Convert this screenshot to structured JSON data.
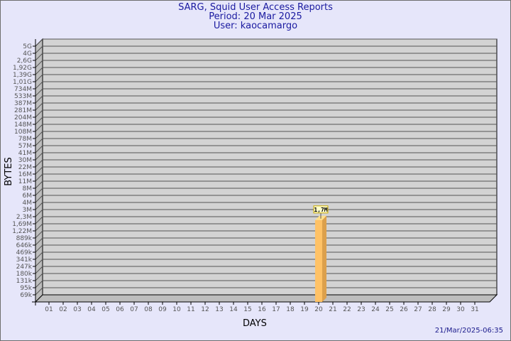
{
  "chart_data": {
    "type": "bar",
    "title": "SARG, Squid User Access Reports",
    "subtitle": [
      "Period: 20 Mar 2025",
      "User: kaocamargo"
    ],
    "xlabel": "DAYS",
    "ylabel": "BYTES",
    "yscale": "log",
    "grid": true,
    "categories": [
      "01",
      "02",
      "03",
      "04",
      "05",
      "06",
      "07",
      "08",
      "09",
      "10",
      "11",
      "12",
      "13",
      "14",
      "15",
      "16",
      "17",
      "18",
      "19",
      "20",
      "21",
      "22",
      "23",
      "24",
      "25",
      "26",
      "27",
      "28",
      "29",
      "30",
      "31"
    ],
    "y_tick_labels": [
      "5G",
      "4G",
      "2,6G",
      "1,92G",
      "1,39G",
      "1,01G",
      "734M",
      "533M",
      "387M",
      "281M",
      "204M",
      "148M",
      "108M",
      "78M",
      "57M",
      "41M",
      "30M",
      "22M",
      "16M",
      "11M",
      "8M",
      "6M",
      "4M",
      "3M",
      "2,3M",
      "1,69M",
      "1,22M",
      "889k",
      "646k",
      "469k",
      "341k",
      "247k",
      "180k",
      "131k",
      "95k",
      "69k"
    ],
    "series": [
      {
        "values": [
          0,
          0,
          0,
          0,
          0,
          0,
          0,
          0,
          0,
          0,
          0,
          0,
          0,
          0,
          0,
          0,
          0,
          0,
          0,
          1700000,
          0,
          0,
          0,
          0,
          0,
          0,
          0,
          0,
          0,
          0,
          0
        ],
        "data_labels": {
          "20": "1,7M"
        }
      }
    ],
    "colors": {
      "bar_front": "#ffc266",
      "bar_side": "#dca04c",
      "bar_top": "#ffe08a",
      "wall": "#d3d3d3",
      "grid": "#555555",
      "background": "#e6e6fa",
      "title": "#1a1aa0"
    }
  },
  "footer": {
    "timestamp": "21/Mar/2025-06:35"
  }
}
